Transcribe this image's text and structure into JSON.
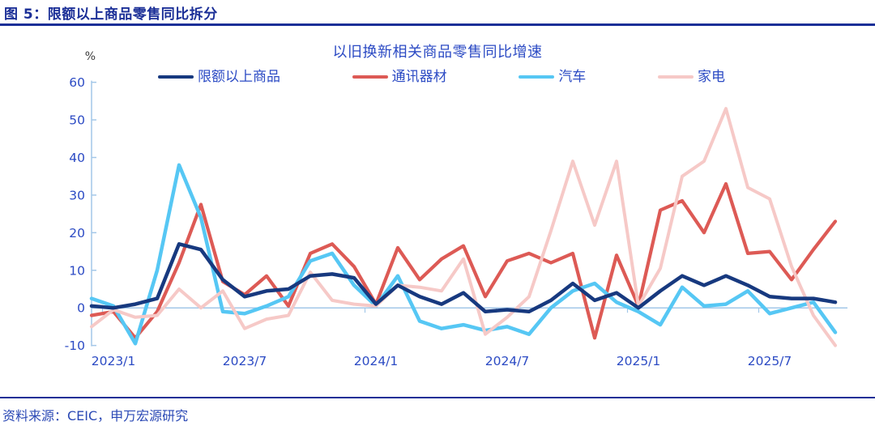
{
  "header": {
    "title": "图 5：限额以上商品零售同比拆分"
  },
  "chart": {
    "title": "以旧换新相关商品零售同比增速",
    "unit": "%"
  },
  "source": {
    "text": "资料来源：CEIC，申万宏源研究"
  },
  "colors": {
    "heading_blue": "#1B2F97",
    "text_blue": "#2C4BC4",
    "axis_light_blue": "#A3C7E8",
    "series_limit_above": "#17397F",
    "series_comms": "#DD5A55",
    "series_auto": "#56C7F4",
    "series_appliance": "#F6C9C7"
  },
  "chart_data": {
    "type": "line",
    "title": "以旧换新相关商品零售同比增速",
    "ylabel": "%",
    "ylim": [
      -10,
      60
    ],
    "y_ticks": [
      -10,
      0,
      10,
      20,
      30,
      40,
      50,
      60
    ],
    "grid": false,
    "zero_line": true,
    "legend_position": "top",
    "x_tick_labels": [
      "2023/1",
      "2023/7",
      "2024/1",
      "2024/7",
      "2025/1",
      "2025/7"
    ],
    "categories": [
      "2022/12",
      "2023/1",
      "2023/2",
      "2023/3",
      "2023/4",
      "2023/5",
      "2023/6",
      "2023/7",
      "2023/8",
      "2023/9",
      "2023/10",
      "2023/11",
      "2023/12",
      "2024/1",
      "2024/2",
      "2024/3",
      "2024/4",
      "2024/5",
      "2024/6",
      "2024/7",
      "2024/8",
      "2024/9",
      "2024/10",
      "2024/11",
      "2024/12",
      "2025/1",
      "2025/2",
      "2025/3",
      "2025/4",
      "2025/5",
      "2025/6",
      "2025/7",
      "2025/8",
      "2025/9",
      "2025/10"
    ],
    "series": [
      {
        "name": "限额以上商品",
        "color": "#17397F",
        "values": [
          0.5,
          0,
          1,
          2.5,
          17,
          15.5,
          7.5,
          3,
          4.5,
          5,
          8.5,
          9,
          8,
          1,
          6,
          3,
          1,
          4,
          -1,
          -0.5,
          -1,
          2,
          6.5,
          2,
          4,
          0,
          4.5,
          8.5,
          6,
          8.5,
          6,
          3,
          2.5,
          2.5,
          1.5
        ]
      },
      {
        "name": "通讯器材",
        "color": "#DD5A55",
        "values": [
          -2,
          -1,
          -8,
          -1,
          12,
          27.5,
          7,
          3.5,
          8.5,
          0.5,
          14.5,
          17,
          11,
          1,
          16,
          7.5,
          13,
          16.5,
          3,
          12.5,
          14.5,
          12,
          14.5,
          -8,
          14,
          0.5,
          26,
          28.5,
          20,
          33,
          14.5,
          15,
          7.5,
          15.5,
          23
        ]
      },
      {
        "name": "汽车",
        "color": "#56C7F4",
        "values": [
          2.5,
          0.5,
          -9.5,
          10,
          38,
          24,
          -1,
          -1.5,
          0.5,
          3,
          12.5,
          14.5,
          6,
          0.5,
          8.5,
          -3.5,
          -5.5,
          -4.5,
          -6,
          -5,
          -7,
          0,
          4.5,
          6.5,
          1.5,
          -1,
          -4.5,
          5.5,
          0.5,
          1,
          4.5,
          -1.5,
          0,
          1.5,
          -6.5
        ]
      },
      {
        "name": "家电",
        "color": "#F6C9C7",
        "values": [
          -5,
          -0.5,
          -2.5,
          -2,
          5,
          0,
          4.5,
          -5.5,
          -3,
          -2,
          9.5,
          2,
          1,
          0.5,
          6,
          5.5,
          4.5,
          13,
          -7,
          -2.5,
          3,
          20.5,
          39,
          22,
          39,
          0.5,
          10.5,
          35,
          39,
          53,
          32,
          29,
          11,
          -2,
          -10
        ]
      }
    ]
  }
}
